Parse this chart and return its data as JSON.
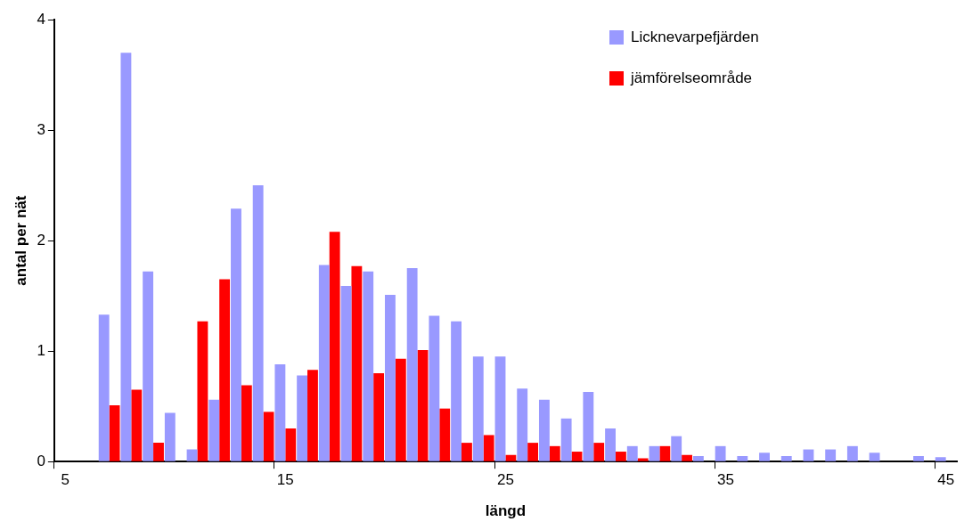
{
  "chart_data": {
    "type": "bar",
    "xlabel": "längd",
    "ylabel": "antal per nät",
    "categories": [
      "5",
      null,
      null,
      null,
      null,
      null,
      null,
      null,
      null,
      null,
      "15",
      null,
      null,
      null,
      null,
      null,
      null,
      null,
      null,
      null,
      "25",
      null,
      null,
      null,
      null,
      null,
      null,
      null,
      null,
      null,
      "35",
      null,
      null,
      null,
      null,
      null,
      null,
      null,
      null,
      null,
      "45"
    ],
    "series": [
      {
        "name": "Licknevarpefjärden",
        "color": "#9999ff",
        "values": [
          0,
          0,
          1.33,
          3.7,
          1.72,
          0.44,
          0.11,
          0.56,
          2.29,
          2.5,
          0.88,
          0.78,
          1.78,
          1.59,
          1.72,
          1.51,
          1.75,
          1.32,
          1.27,
          0.95,
          0.95,
          0.66,
          0.56,
          0.39,
          0.63,
          0.3,
          0.14,
          0.14,
          0.23,
          0.05,
          0.14,
          0.05,
          0.08,
          0.05,
          0.11,
          0.11,
          0.14,
          0.08,
          0,
          0.05,
          0.04
        ]
      },
      {
        "name": "jämförelseområde",
        "color": "#ff0000",
        "values": [
          0,
          0,
          0.51,
          0.65,
          0.17,
          0,
          1.27,
          1.65,
          0.69,
          0.45,
          0.3,
          0.83,
          2.08,
          1.77,
          0.8,
          0.93,
          1.01,
          0.48,
          0.17,
          0.24,
          0.06,
          0.17,
          0.14,
          0.09,
          0.17,
          0.09,
          0.03,
          0.14,
          0.06,
          0,
          0,
          0,
          0,
          0,
          0,
          0,
          0,
          0,
          0,
          0,
          0
        ]
      }
    ],
    "ylim": [
      0,
      4
    ],
    "yticks": [
      0,
      1,
      2,
      3,
      4
    ],
    "grid": false,
    "legend": "top right"
  }
}
